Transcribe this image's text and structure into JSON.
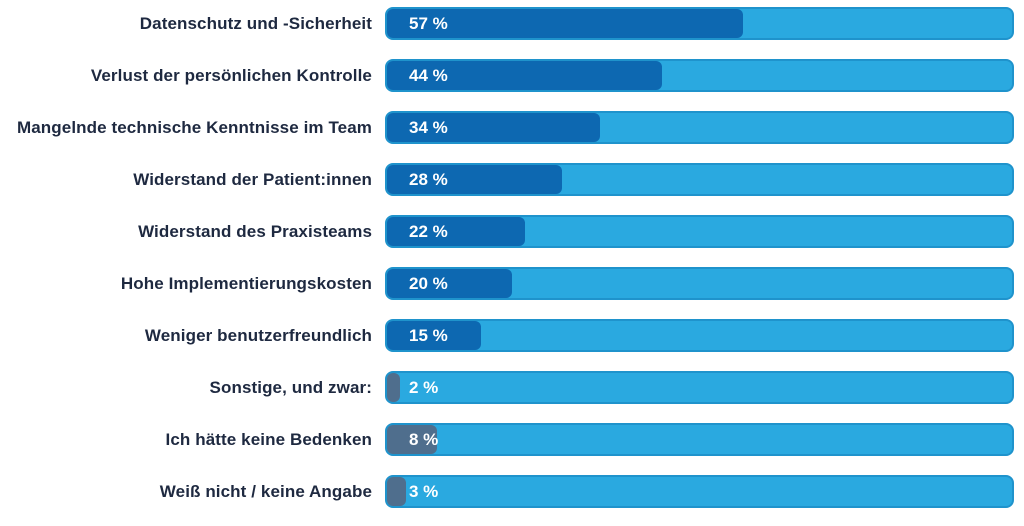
{
  "chart_data": {
    "type": "bar",
    "orientation": "horizontal",
    "title": "",
    "xlabel": "",
    "ylabel": "",
    "unit": "%",
    "xlim": [
      0,
      100
    ],
    "grid": false,
    "legend": "none",
    "categories": [
      "Datenschutz und -Sicherheit",
      "Verlust der persönlichen Kontrolle",
      "Mangelnde technische Kenntnisse im Team",
      "Widerstand der Patient:innen",
      "Widerstand des Praxisteams",
      "Hohe Implementierungskosten",
      "Weniger benutzerfreundlich",
      "Sonstige, und zwar:",
      "Ich hätte keine Bedenken",
      "Weiß nicht / keine Angabe"
    ],
    "values": [
      57,
      44,
      34,
      28,
      22,
      20,
      15,
      2,
      8,
      3
    ],
    "value_labels": [
      "57 %",
      "44 %",
      "34 %",
      "28 %",
      "22 %",
      "20 %",
      "15 %",
      "2 %",
      "8 %",
      "3 %"
    ],
    "bar_styles": [
      "primary",
      "primary",
      "primary",
      "primary",
      "primary",
      "primary",
      "primary",
      "muted",
      "muted",
      "muted"
    ],
    "colors": {
      "primary": "#0d68b1",
      "muted": "#4f6e8d",
      "track": "#2aa9e0",
      "track_border": "#1f93cc",
      "label_text": "#1e2940",
      "value_text": "#ffffff",
      "background": "#ffffff"
    }
  }
}
